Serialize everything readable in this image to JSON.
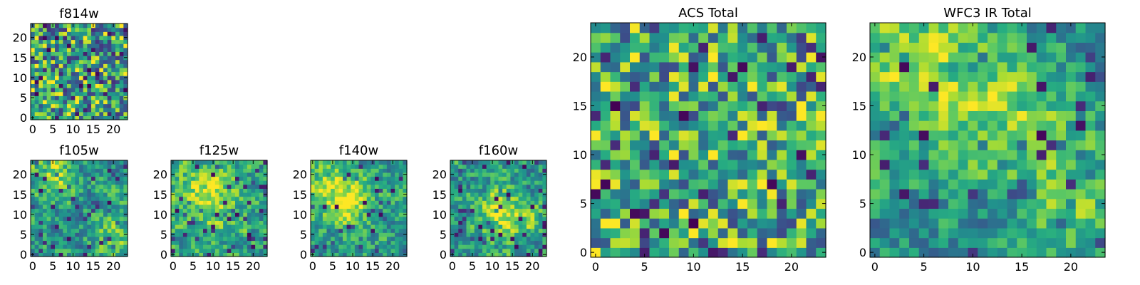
{
  "chart_data": [
    {
      "id": "f814w",
      "type": "heatmap",
      "title": "f814w",
      "grid_size": 24,
      "xticks": [
        "0",
        "5",
        "10",
        "15",
        "20"
      ],
      "yticks": [
        "0",
        "5",
        "10",
        "15",
        "20"
      ],
      "xlim": [
        0,
        24
      ],
      "ylim": [
        0,
        24
      ],
      "colormap": "viridis",
      "pattern": "uniform random noise",
      "seed": 11,
      "base": 0.6,
      "amp": 0.55,
      "hotspots": []
    },
    {
      "id": "f105w",
      "type": "heatmap",
      "title": "f105w",
      "grid_size": 24,
      "xticks": [
        "0",
        "5",
        "10",
        "15",
        "20"
      ],
      "yticks": [
        "0",
        "5",
        "10",
        "15",
        "20"
      ],
      "xlim": [
        0,
        24
      ],
      "ylim": [
        0,
        24
      ],
      "colormap": "viridis",
      "pattern": "smooth noise, bright band top-left",
      "seed": 23,
      "base": 0.55,
      "amp": 0.45,
      "hotspots": [
        [
          4,
          20,
          4,
          0.3
        ],
        [
          20,
          5,
          3,
          0.25
        ]
      ]
    },
    {
      "id": "f125w",
      "type": "heatmap",
      "title": "f125w",
      "grid_size": 24,
      "xticks": [
        "0",
        "5",
        "10",
        "15",
        "20"
      ],
      "yticks": [
        "0",
        "5",
        "10",
        "15",
        "20"
      ],
      "xlim": [
        0,
        24
      ],
      "ylim": [
        0,
        24
      ],
      "colormap": "viridis",
      "pattern": "smooth noise, diffuse bright centre",
      "seed": 37,
      "base": 0.55,
      "amp": 0.45,
      "hotspots": [
        [
          8,
          17,
          5,
          0.25
        ],
        [
          10,
          10,
          6,
          0.15
        ]
      ]
    },
    {
      "id": "f140w",
      "type": "heatmap",
      "title": "f140w",
      "grid_size": 24,
      "xticks": [
        "0",
        "5",
        "10",
        "15",
        "20"
      ],
      "yticks": [
        "0",
        "5",
        "10",
        "15",
        "20"
      ],
      "xlim": [
        0,
        24
      ],
      "ylim": [
        0,
        24
      ],
      "colormap": "viridis",
      "pattern": "smooth noise, bright arc upper-left",
      "seed": 41,
      "base": 0.55,
      "amp": 0.45,
      "hotspots": [
        [
          5,
          16,
          5,
          0.3
        ],
        [
          10,
          13,
          4,
          0.25
        ]
      ]
    },
    {
      "id": "f160w",
      "type": "heatmap",
      "title": "f160w",
      "grid_size": 24,
      "xticks": [
        "0",
        "5",
        "10",
        "15",
        "20"
      ],
      "yticks": [
        "0",
        "5",
        "10",
        "15",
        "20"
      ],
      "xlim": [
        0,
        24
      ],
      "ylim": [
        0,
        24
      ],
      "colormap": "viridis",
      "pattern": "smooth noise, bright centre-right",
      "seed": 53,
      "base": 0.55,
      "amp": 0.45,
      "hotspots": [
        [
          12,
          11,
          4,
          0.35
        ],
        [
          18,
          8,
          3,
          0.2
        ]
      ]
    },
    {
      "id": "acs_total",
      "type": "heatmap",
      "title": "ACS Total",
      "grid_size": 24,
      "xticks": [
        "0",
        "5",
        "10",
        "15",
        "20"
      ],
      "yticks": [
        "0",
        "5",
        "10",
        "15",
        "20"
      ],
      "xlim": [
        0,
        24
      ],
      "ylim": [
        0,
        24
      ],
      "colormap": "viridis",
      "pattern": "uniform random noise with sparse dark pixels",
      "seed": 67,
      "base": 0.62,
      "amp": 0.5,
      "hotspots": []
    },
    {
      "id": "wfc3_ir_total",
      "type": "heatmap",
      "title": "WFC3 IR Total",
      "grid_size": 24,
      "xticks": [
        "0",
        "5",
        "10",
        "15",
        "20"
      ],
      "yticks": [
        "0",
        "5",
        "10",
        "15",
        "20"
      ],
      "xlim": [
        0,
        24
      ],
      "ylim": [
        0,
        24
      ],
      "colormap": "viridis",
      "pattern": "smooth noise, bright top-left and centre",
      "seed": 79,
      "base": 0.5,
      "amp": 0.4,
      "hotspots": [
        [
          3,
          20,
          5,
          0.35
        ],
        [
          13,
          14,
          5,
          0.3
        ],
        [
          20,
          5,
          4,
          0.25
        ]
      ]
    }
  ]
}
